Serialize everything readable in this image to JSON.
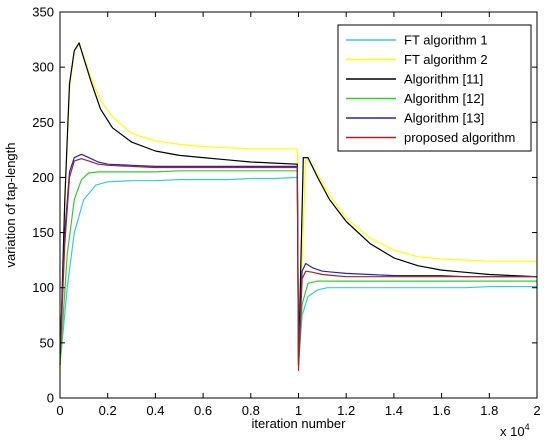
{
  "chart_data": {
    "type": "line",
    "xlabel": "iteration number",
    "ylabel": "variation of tap-length",
    "x_multiplier_label": "x 10",
    "x_multiplier_exponent": "4",
    "xlim": [
      0,
      20000
    ],
    "ylim": [
      0,
      350
    ],
    "xticks": [
      0,
      2000,
      4000,
      6000,
      8000,
      10000,
      12000,
      14000,
      16000,
      18000,
      20000
    ],
    "xtick_labels": [
      "0",
      "0.2",
      "0.4",
      "0.6",
      "0.8",
      "1",
      "1.2",
      "1.4",
      "1.6",
      "1.8",
      "2"
    ],
    "yticks": [
      0,
      50,
      100,
      150,
      200,
      250,
      300,
      350
    ],
    "ytick_labels": [
      "0",
      "50",
      "100",
      "150",
      "200",
      "250",
      "300",
      "350"
    ],
    "grid": false,
    "legend_position": "top-right",
    "series": [
      {
        "name": "FT algorithm 1",
        "color": "#33ccdd",
        "x": [
          0,
          300,
          600,
          1000,
          1500,
          2000,
          3000,
          4000,
          5000,
          6000,
          7000,
          8000,
          9000,
          9950,
          10000,
          10150,
          10400,
          10800,
          11200,
          12000,
          13000,
          14000,
          15000,
          16000,
          17000,
          18000,
          19000,
          20000
        ],
        "y": [
          30,
          100,
          150,
          180,
          193,
          196,
          197,
          197,
          198,
          198,
          198,
          199,
          199,
          200,
          30,
          75,
          92,
          98,
          100,
          100,
          100,
          100,
          100,
          100,
          100,
          101,
          101,
          101
        ]
      },
      {
        "name": "FT algorithm 2",
        "color": "#ffff00",
        "x": [
          0,
          200,
          400,
          600,
          800,
          1000,
          1300,
          1700,
          2200,
          3000,
          4000,
          5000,
          6000,
          7000,
          8000,
          9000,
          9950,
          10000,
          10300,
          10600,
          11000,
          11500,
          12000,
          13000,
          14000,
          15000,
          16000,
          17000,
          18000,
          19000,
          20000
        ],
        "y": [
          20,
          180,
          280,
          315,
          320,
          310,
          290,
          270,
          255,
          240,
          233,
          230,
          228,
          227,
          226,
          226,
          226,
          30,
          218,
          210,
          195,
          178,
          163,
          145,
          134,
          128,
          126,
          125,
          124,
          124,
          124
        ]
      },
      {
        "name": "Algorithm [11]",
        "color": "#000000",
        "x": [
          0,
          200,
          400,
          600,
          800,
          1000,
          1300,
          1700,
          2200,
          3000,
          4000,
          5000,
          6000,
          7000,
          8000,
          9000,
          9950,
          10000,
          10200,
          10400,
          10800,
          11300,
          12000,
          13000,
          14000,
          15000,
          16000,
          17000,
          18000,
          19000,
          20000
        ],
        "y": [
          30,
          180,
          285,
          315,
          322,
          308,
          287,
          262,
          245,
          232,
          224,
          220,
          218,
          216,
          214,
          213,
          212,
          30,
          218,
          218,
          200,
          180,
          160,
          140,
          127,
          120,
          116,
          114,
          112,
          111,
          110
        ]
      },
      {
        "name": "Algorithm [12]",
        "color": "#33cc33",
        "x": [
          0,
          300,
          600,
          900,
          1200,
          1600,
          2000,
          3000,
          4000,
          5000,
          6000,
          7000,
          8000,
          9000,
          9950,
          10000,
          10150,
          10400,
          10800,
          11500,
          12000,
          13000,
          14000,
          15000,
          16000,
          17000,
          18000,
          19000,
          20000
        ],
        "y": [
          30,
          130,
          180,
          198,
          204,
          205,
          205,
          205,
          205,
          206,
          206,
          206,
          206,
          206,
          206,
          30,
          85,
          104,
          106,
          106,
          106,
          106,
          106,
          106,
          106,
          106,
          106,
          106,
          106
        ]
      },
      {
        "name": "Algorithm [13]",
        "color": "#2222cc",
        "x": [
          0,
          200,
          400,
          600,
          900,
          1200,
          1600,
          2000,
          3000,
          4000,
          5000,
          6000,
          7000,
          8000,
          9000,
          9950,
          10000,
          10150,
          10300,
          10600,
          11000,
          11500,
          12000,
          13000,
          14000,
          15000,
          16000,
          17000,
          18000,
          19000,
          20000
        ],
        "y": [
          40,
          150,
          205,
          218,
          221,
          218,
          214,
          212,
          211,
          210,
          210,
          210,
          210,
          210,
          210,
          210,
          40,
          115,
          122,
          118,
          115,
          114,
          113,
          112,
          111,
          111,
          111,
          110,
          110,
          110,
          110
        ]
      },
      {
        "name": "proposed algorithm",
        "color": "#aa2222",
        "x": [
          0,
          200,
          400,
          600,
          900,
          1200,
          1600,
          2000,
          3000,
          4000,
          5000,
          6000,
          7000,
          8000,
          9000,
          9950,
          10000,
          10150,
          10300,
          10600,
          11000,
          11500,
          12000,
          13000,
          14000,
          15000,
          16000,
          17000,
          18000,
          19000,
          20000
        ],
        "y": [
          35,
          140,
          200,
          215,
          217,
          215,
          212,
          211,
          210,
          209,
          209,
          209,
          209,
          209,
          209,
          209,
          25,
          108,
          115,
          114,
          112,
          111,
          110,
          110,
          110,
          110,
          110,
          110,
          110,
          110,
          110
        ]
      }
    ]
  }
}
